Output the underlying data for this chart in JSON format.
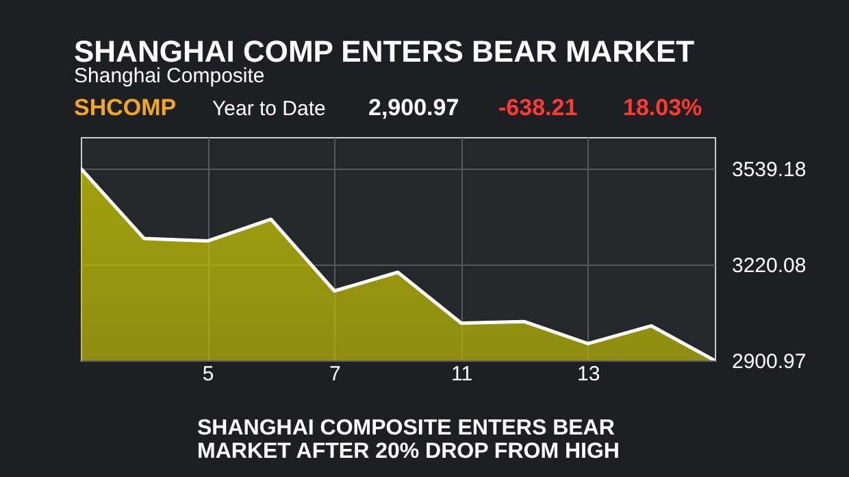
{
  "chart_data": {
    "type": "area",
    "title": "SHANGHAI COMP ENTERS BEAR MARKET",
    "subtitle": "Shanghai Composite",
    "categories": [
      null,
      null,
      "5",
      null,
      "7",
      null,
      "11",
      null,
      "13",
      null,
      null
    ],
    "series": [
      {
        "color": "#d8d400",
        "values": [
          3539,
          3306,
          3298,
          3370,
          3132,
          3194,
          3025,
          3030,
          2957,
          3016,
          2901
        ]
      }
    ],
    "ylim": [
      2900.97,
      3643
    ],
    "yticks": [
      2900.97,
      3220.08,
      3539.18
    ],
    "grid": true,
    "annotations": [
      "SHCOMP",
      "Year to Date",
      "2,900.97",
      "-638.21",
      "18.03%",
      "SHANGHAI COMPOSITE ENTERS BEAR",
      "MARKET AFTER 20% DROP FROM HIGH"
    ]
  }
}
